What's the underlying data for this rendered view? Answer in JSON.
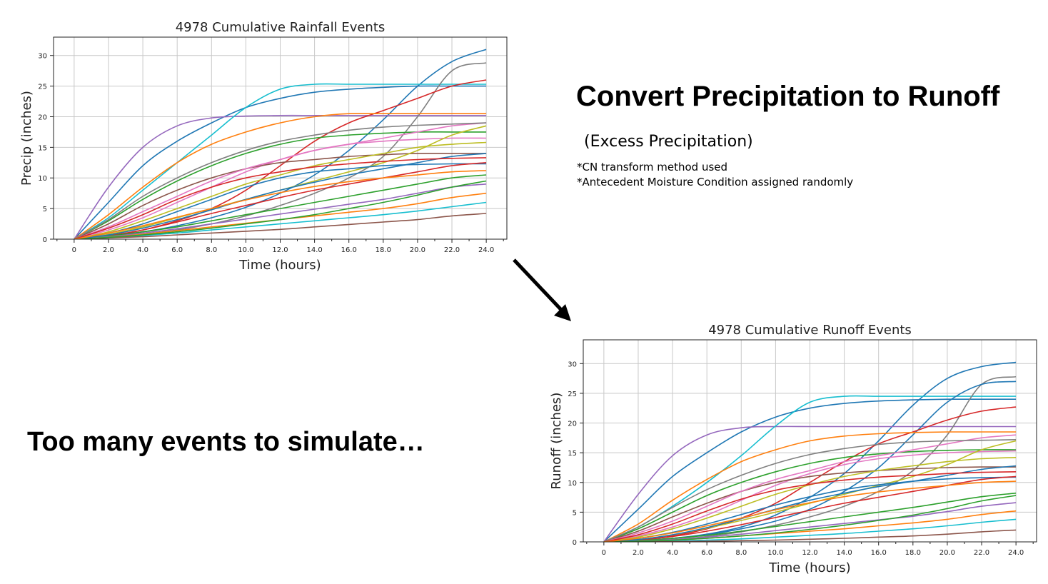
{
  "slide": {
    "heading": "Convert Precipitation to Runoff",
    "subheading": "(Excess Precipitation)",
    "notes": [
      "*CN transform method used",
      "*Antecedent Moisture Condition assigned randomly"
    ],
    "bottom_text": "Too many events to simulate…"
  },
  "chart_data": [
    {
      "type": "line",
      "title": "4978  Cumulative Rainfall Events",
      "xlabel": "Time (hours)",
      "ylabel": "Precip (inches)",
      "xlim": [
        -1.2,
        25.2
      ],
      "ylim": [
        0,
        33
      ],
      "x_ticks": [
        0,
        2,
        4,
        6,
        8,
        10,
        12,
        14,
        16,
        18,
        20,
        22,
        24
      ],
      "x_tick_labels": [
        "0",
        "2.0",
        "4.0",
        "6.0",
        "8.0",
        "10.0",
        "12.0",
        "14.0",
        "16.0",
        "18.0",
        "20.0",
        "22.0",
        "24.0"
      ],
      "y_ticks": [
        0,
        5,
        10,
        15,
        20,
        25,
        30
      ],
      "y_tick_labels": [
        "0",
        "5",
        "10",
        "15",
        "20",
        "25",
        "30"
      ],
      "grid": true,
      "legend": "none",
      "x": [
        0,
        2,
        4,
        6,
        8,
        10,
        12,
        14,
        16,
        18,
        20,
        22,
        24
      ],
      "series": [
        {
          "color": "#1f77b4",
          "values": [
            0,
            0.5,
            1.2,
            2.2,
            3.5,
            5.2,
            7.5,
            10.5,
            14.5,
            19.5,
            25.0,
            29.0,
            31.0
          ]
        },
        {
          "color": "#1f77b4",
          "values": [
            0,
            6.0,
            12.0,
            16.0,
            19.0,
            21.5,
            23.0,
            24.0,
            24.5,
            24.8,
            25.0,
            25.0,
            25.0
          ]
        },
        {
          "color": "#9467bd",
          "values": [
            0,
            8.5,
            15.0,
            18.5,
            19.8,
            20.1,
            20.2,
            20.2,
            20.2,
            20.2,
            20.2,
            20.2,
            20.2
          ]
        },
        {
          "color": "#17becf",
          "values": [
            0,
            3.5,
            8.0,
            12.5,
            17.0,
            21.5,
            24.5,
            25.3,
            25.3,
            25.3,
            25.3,
            25.3,
            25.3
          ]
        },
        {
          "color": "#7f7f7f",
          "values": [
            0,
            0.3,
            0.8,
            1.5,
            2.5,
            3.8,
            5.5,
            7.5,
            10.0,
            13.5,
            20.0,
            27.5,
            28.8
          ]
        },
        {
          "color": "#d62728",
          "values": [
            0,
            0.5,
            1.5,
            3.0,
            5.0,
            8.0,
            12.0,
            16.0,
            19.0,
            21.0,
            23.0,
            25.0,
            26.0
          ]
        },
        {
          "color": "#ff7f0e",
          "values": [
            0,
            4.0,
            8.5,
            12.5,
            15.5,
            17.5,
            19.0,
            20.0,
            20.5,
            20.5,
            20.5,
            20.5,
            20.5
          ]
        },
        {
          "color": "#2ca02c",
          "values": [
            0,
            3.0,
            6.5,
            9.5,
            12.0,
            14.0,
            15.5,
            16.5,
            17.0,
            17.3,
            17.5,
            17.5,
            17.5
          ]
        },
        {
          "color": "#e377c2",
          "values": [
            0,
            1.5,
            3.5,
            6.0,
            8.5,
            11.0,
            13.0,
            14.5,
            15.5,
            16.0,
            16.3,
            16.5,
            16.5
          ]
        },
        {
          "color": "#8c564b",
          "values": [
            0,
            2.5,
            5.5,
            8.0,
            10.0,
            11.5,
            12.5,
            13.0,
            13.5,
            13.8,
            14.0,
            14.0,
            14.0
          ]
        },
        {
          "color": "#bcbd22",
          "values": [
            0,
            0.8,
            2.0,
            3.5,
            5.0,
            6.5,
            8.0,
            9.5,
            11.0,
            12.5,
            14.5,
            17.0,
            18.5
          ]
        },
        {
          "color": "#1f77b4",
          "values": [
            0,
            1.0,
            2.5,
            4.5,
            6.5,
            8.5,
            10.0,
            11.0,
            11.5,
            12.0,
            12.2,
            12.3,
            12.3
          ]
        },
        {
          "color": "#d62728",
          "values": [
            0,
            0.6,
            1.5,
            2.8,
            4.2,
            5.5,
            6.8,
            8.0,
            9.0,
            10.0,
            11.0,
            12.0,
            12.5
          ]
        },
        {
          "color": "#2ca02c",
          "values": [
            0,
            0.5,
            1.2,
            2.0,
            3.0,
            4.0,
            5.0,
            6.0,
            7.0,
            8.0,
            9.0,
            10.0,
            10.5
          ]
        },
        {
          "color": "#9467bd",
          "values": [
            0,
            0.4,
            1.0,
            1.7,
            2.5,
            3.3,
            4.1,
            4.9,
            5.7,
            6.5,
            7.5,
            8.5,
            9.0
          ]
        },
        {
          "color": "#ff7f0e",
          "values": [
            0,
            0.3,
            0.8,
            1.4,
            2.0,
            2.6,
            3.2,
            3.8,
            4.4,
            5.0,
            5.8,
            6.8,
            7.5
          ]
        },
        {
          "color": "#17becf",
          "values": [
            0,
            0.2,
            0.6,
            1.0,
            1.5,
            2.0,
            2.5,
            3.0,
            3.5,
            4.0,
            4.6,
            5.3,
            6.0
          ]
        },
        {
          "color": "#8c564b",
          "values": [
            0,
            0.2,
            0.4,
            0.7,
            1.0,
            1.3,
            1.6,
            2.0,
            2.4,
            2.8,
            3.2,
            3.8,
            4.2
          ]
        },
        {
          "color": "#e377c2",
          "values": [
            0,
            2.0,
            4.5,
            7.0,
            9.5,
            11.5,
            13.0,
            14.5,
            15.5,
            16.5,
            17.5,
            18.5,
            19.0
          ]
        },
        {
          "color": "#7f7f7f",
          "values": [
            0,
            3.2,
            7.0,
            10.0,
            12.5,
            14.5,
            16.0,
            17.0,
            17.8,
            18.3,
            18.6,
            18.8,
            19.0
          ]
        },
        {
          "color": "#bcbd22",
          "values": [
            0,
            1.2,
            3.0,
            5.0,
            7.0,
            9.0,
            10.5,
            12.0,
            13.0,
            14.0,
            15.0,
            15.5,
            15.8
          ]
        },
        {
          "color": "#1f77b4",
          "values": [
            0,
            0.7,
            1.8,
            3.2,
            4.8,
            6.5,
            8.0,
            9.3,
            10.5,
            11.5,
            12.5,
            13.5,
            14.0
          ]
        },
        {
          "color": "#d62728",
          "values": [
            0,
            1.8,
            4.0,
            6.5,
            8.5,
            10.0,
            11.0,
            11.8,
            12.3,
            12.7,
            13.0,
            13.2,
            13.3
          ]
        },
        {
          "color": "#2ca02c",
          "values": [
            0,
            0.3,
            0.7,
            1.2,
            1.8,
            2.5,
            3.2,
            4.0,
            5.0,
            6.0,
            7.2,
            8.5,
            9.5
          ]
        },
        {
          "color": "#ff7f0e",
          "values": [
            0,
            1.0,
            2.2,
            3.6,
            5.0,
            6.4,
            7.6,
            8.6,
            9.4,
            10.0,
            10.5,
            11.0,
            11.2
          ]
        }
      ]
    },
    {
      "type": "line",
      "title": "4978  Cumulative Runoff Events",
      "xlabel": "Time (hours)",
      "ylabel": "Runoff (inches)",
      "xlim": [
        -1.2,
        25.2
      ],
      "ylim": [
        0,
        34
      ],
      "x_ticks": [
        0,
        2,
        4,
        6,
        8,
        10,
        12,
        14,
        16,
        18,
        20,
        22,
        24
      ],
      "x_tick_labels": [
        "0",
        "2.0",
        "4.0",
        "6.0",
        "8.0",
        "10.0",
        "12.0",
        "14.0",
        "16.0",
        "18.0",
        "20.0",
        "22.0",
        "24.0"
      ],
      "y_ticks": [
        0,
        5,
        10,
        15,
        20,
        25,
        30
      ],
      "y_tick_labels": [
        "0",
        "5",
        "10",
        "15",
        "20",
        "25",
        "30"
      ],
      "grid": true,
      "legend": "none",
      "x": [
        0,
        2,
        4,
        6,
        8,
        10,
        12,
        14,
        16,
        18,
        20,
        22,
        24
      ],
      "series": [
        {
          "color": "#1f77b4",
          "values": [
            0,
            0.2,
            0.6,
            1.3,
            2.5,
            4.5,
            7.5,
            11.5,
            17.0,
            23.0,
            27.5,
            29.5,
            30.2
          ]
        },
        {
          "color": "#1f77b4",
          "values": [
            0,
            5.5,
            11.0,
            15.0,
            18.5,
            21.0,
            22.5,
            23.3,
            23.7,
            23.9,
            24.0,
            24.0,
            24.0
          ]
        },
        {
          "color": "#9467bd",
          "values": [
            0,
            8.0,
            14.5,
            18.0,
            19.2,
            19.4,
            19.4,
            19.4,
            19.4,
            19.4,
            19.4,
            19.4,
            19.4
          ]
        },
        {
          "color": "#17becf",
          "values": [
            0,
            2.5,
            6.0,
            10.0,
            14.5,
            19.5,
            23.5,
            24.5,
            24.5,
            24.5,
            24.5,
            24.5,
            24.5
          ]
        },
        {
          "color": "#7f7f7f",
          "values": [
            0,
            0.1,
            0.4,
            0.9,
            1.7,
            2.8,
            4.2,
            6.0,
            8.5,
            12.0,
            18.0,
            26.5,
            27.8
          ]
        },
        {
          "color": "#1f77b4",
          "values": [
            0,
            0.2,
            0.6,
            1.2,
            2.2,
            3.5,
            5.5,
            8.5,
            12.5,
            18.0,
            23.5,
            26.5,
            27.0
          ]
        },
        {
          "color": "#d62728",
          "values": [
            0,
            0.3,
            1.0,
            2.2,
            4.0,
            6.5,
            10.0,
            13.5,
            16.5,
            18.5,
            20.5,
            22.0,
            22.7
          ]
        },
        {
          "color": "#ff7f0e",
          "values": [
            0,
            3.0,
            7.0,
            10.5,
            13.5,
            15.5,
            17.0,
            17.8,
            18.2,
            18.4,
            18.5,
            18.5,
            18.5
          ]
        },
        {
          "color": "#2ca02c",
          "values": [
            0,
            2.2,
            5.0,
            7.8,
            10.0,
            11.8,
            13.2,
            14.2,
            14.8,
            15.2,
            15.4,
            15.5,
            15.5
          ]
        },
        {
          "color": "#e377c2",
          "values": [
            0,
            1.0,
            2.5,
            4.5,
            7.0,
            9.5,
            11.5,
            13.0,
            14.0,
            14.6,
            15.0,
            15.2,
            15.3
          ]
        },
        {
          "color": "#8c564b",
          "values": [
            0,
            1.8,
            4.2,
            6.5,
            8.5,
            10.0,
            11.0,
            11.6,
            12.0,
            12.3,
            12.5,
            12.6,
            12.6
          ]
        },
        {
          "color": "#bcbd22",
          "values": [
            0,
            0.4,
            1.2,
            2.3,
            3.6,
            5.0,
            6.5,
            8.0,
            9.5,
            11.0,
            13.0,
            15.5,
            17.0
          ]
        },
        {
          "color": "#1f77b4",
          "values": [
            0,
            0.6,
            1.6,
            3.0,
            4.6,
            6.2,
            7.6,
            8.8,
            9.6,
            10.2,
            10.6,
            10.8,
            10.9
          ]
        },
        {
          "color": "#d62728",
          "values": [
            0,
            0.3,
            0.9,
            1.8,
            2.9,
            4.1,
            5.3,
            6.5,
            7.5,
            8.5,
            9.5,
            10.5,
            11.0
          ]
        },
        {
          "color": "#2ca02c",
          "values": [
            0,
            0.2,
            0.6,
            1.1,
            1.8,
            2.6,
            3.4,
            4.2,
            5.0,
            5.8,
            6.7,
            7.6,
            8.2
          ]
        },
        {
          "color": "#9467bd",
          "values": [
            0,
            0.15,
            0.4,
            0.8,
            1.3,
            1.9,
            2.5,
            3.1,
            3.7,
            4.3,
            5.1,
            6.0,
            6.6
          ]
        },
        {
          "color": "#ff7f0e",
          "values": [
            0,
            0.1,
            0.3,
            0.6,
            1.0,
            1.4,
            1.8,
            2.2,
            2.7,
            3.2,
            3.8,
            4.6,
            5.2
          ]
        },
        {
          "color": "#17becf",
          "values": [
            0,
            0.05,
            0.15,
            0.3,
            0.5,
            0.8,
            1.1,
            1.4,
            1.8,
            2.2,
            2.7,
            3.3,
            3.8
          ]
        },
        {
          "color": "#8c564b",
          "values": [
            0,
            0.02,
            0.06,
            0.12,
            0.2,
            0.3,
            0.45,
            0.6,
            0.8,
            1.0,
            1.3,
            1.7,
            2.0
          ]
        },
        {
          "color": "#e377c2",
          "values": [
            0,
            1.5,
            3.5,
            6.0,
            8.5,
            10.5,
            12.0,
            13.5,
            14.5,
            15.5,
            16.5,
            17.5,
            18.0
          ]
        },
        {
          "color": "#7f7f7f",
          "values": [
            0,
            2.5,
            5.8,
            8.8,
            11.2,
            13.2,
            14.7,
            15.7,
            16.4,
            16.8,
            17.0,
            17.1,
            17.2
          ]
        },
        {
          "color": "#bcbd22",
          "values": [
            0,
            0.8,
            2.2,
            4.0,
            6.0,
            8.0,
            9.6,
            11.0,
            12.0,
            12.8,
            13.5,
            14.0,
            14.2
          ]
        },
        {
          "color": "#1f77b4",
          "values": [
            0,
            0.4,
            1.2,
            2.4,
            3.9,
            5.5,
            7.0,
            8.2,
            9.3,
            10.2,
            11.2,
            12.2,
            12.8
          ]
        },
        {
          "color": "#d62728",
          "values": [
            0,
            1.2,
            3.0,
            5.2,
            7.2,
            8.7,
            9.7,
            10.4,
            10.9,
            11.2,
            11.5,
            11.7,
            11.8
          ]
        },
        {
          "color": "#2ca02c",
          "values": [
            0,
            0.1,
            0.3,
            0.6,
            1.0,
            1.5,
            2.1,
            2.8,
            3.6,
            4.5,
            5.6,
            6.9,
            7.8
          ]
        },
        {
          "color": "#ff7f0e",
          "values": [
            0,
            0.6,
            1.5,
            2.7,
            4.0,
            5.4,
            6.6,
            7.6,
            8.4,
            9.0,
            9.5,
            10.0,
            10.2
          ]
        }
      ]
    }
  ]
}
